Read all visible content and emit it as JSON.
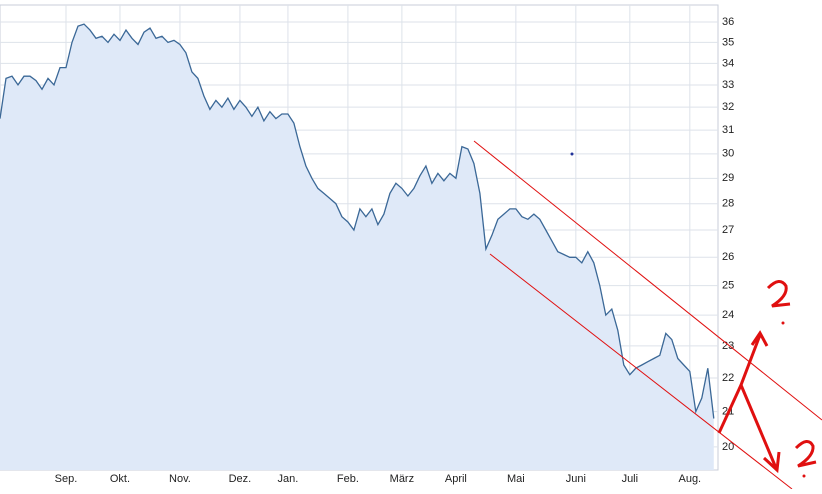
{
  "chart_data": {
    "type": "line",
    "log_y": true,
    "grid": true,
    "series": [
      {
        "color": "#3b6897",
        "fill": "#dfe9f8",
        "values": [
          31.5,
          33.3,
          33.4,
          33.0,
          33.4,
          33.4,
          33.2,
          32.8,
          33.3,
          33.0,
          33.8,
          33.8,
          35.0,
          35.8,
          35.9,
          35.6,
          35.2,
          35.3,
          35.0,
          35.4,
          35.1,
          35.6,
          35.2,
          34.9,
          35.5,
          35.7,
          35.2,
          35.3,
          35.0,
          35.1,
          34.9,
          34.5,
          33.6,
          33.3,
          32.5,
          31.9,
          32.3,
          32.0,
          32.4,
          31.9,
          32.3,
          32.0,
          31.6,
          32.0,
          31.4,
          31.8,
          31.5,
          31.7,
          31.7,
          31.3,
          30.3,
          29.5,
          29.0,
          28.6,
          28.4,
          28.2,
          28.0,
          27.5,
          27.3,
          27.0,
          27.8,
          27.5,
          27.8,
          27.2,
          27.6,
          28.4,
          28.8,
          28.6,
          28.3,
          28.6,
          29.1,
          29.5,
          28.8,
          29.2,
          28.9,
          29.2,
          29.0,
          30.3,
          30.2,
          29.6,
          28.4,
          26.3,
          26.8,
          27.4,
          27.6,
          27.8,
          27.8,
          27.5,
          27.4,
          27.6,
          27.4,
          27.0,
          26.6,
          26.2,
          26.1,
          26.0,
          26.0,
          25.8,
          26.2,
          25.8,
          25.0,
          24.0,
          24.2,
          23.5,
          22.4,
          22.1,
          22.3,
          22.4,
          22.5,
          22.6,
          22.7,
          23.4,
          23.2,
          22.6,
          22.4,
          22.2,
          21.0,
          21.4,
          22.3,
          20.8
        ]
      }
    ],
    "xlim": [
      0,
      119.7
    ],
    "xticks": [
      {
        "value": 11,
        "label": "Sep."
      },
      {
        "value": 20,
        "label": "Okt."
      },
      {
        "value": 30,
        "label": "Nov."
      },
      {
        "value": 40,
        "label": "Dez."
      },
      {
        "value": 48,
        "label": "Jan."
      },
      {
        "value": 58,
        "label": "Feb."
      },
      {
        "value": 67,
        "label": "März"
      },
      {
        "value": 76,
        "label": "April"
      },
      {
        "value": 86,
        "label": "Mai"
      },
      {
        "value": 96,
        "label": "Juni"
      },
      {
        "value": 105,
        "label": "Juli"
      },
      {
        "value": 115,
        "label": "Aug."
      }
    ],
    "ylim": [
      19.37,
      36.86
    ],
    "yticks": [
      20,
      21,
      22,
      23,
      24,
      25,
      26,
      27,
      28,
      29,
      30,
      31,
      32,
      33,
      34,
      35,
      36
    ]
  }
}
